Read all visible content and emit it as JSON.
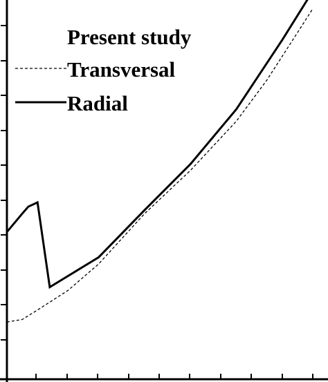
{
  "chart_data": {
    "type": "line",
    "title": "",
    "xlabel": "",
    "ylabel": "",
    "xlim": [
      0,
      100
    ],
    "ylim": [
      0,
      100
    ],
    "grid": false,
    "legend_placement": "top-left",
    "legend": {
      "heading": "Present study",
      "entries": [
        "Transversal",
        "Radial"
      ]
    },
    "series": [
      {
        "name": "Transversal",
        "style": "dashed",
        "color": "#000000",
        "x": [
          0,
          5,
          10,
          20,
          30,
          45,
          60,
          75,
          85,
          95,
          100
        ],
        "y": [
          15.5,
          16.2,
          18.9,
          24.5,
          32,
          46.3,
          58.6,
          72.6,
          84.3,
          97.8,
          104.6
        ]
      },
      {
        "name": "Radial",
        "style": "solid",
        "color": "#000000",
        "x": [
          0,
          5,
          7,
          10,
          14,
          30,
          45,
          60,
          75,
          90,
          100
        ],
        "y": [
          41.1,
          46.3,
          48.3,
          49.5,
          25.4,
          33.9,
          47.3,
          60.4,
          76,
          95.7,
          109.6
        ]
      }
    ]
  }
}
